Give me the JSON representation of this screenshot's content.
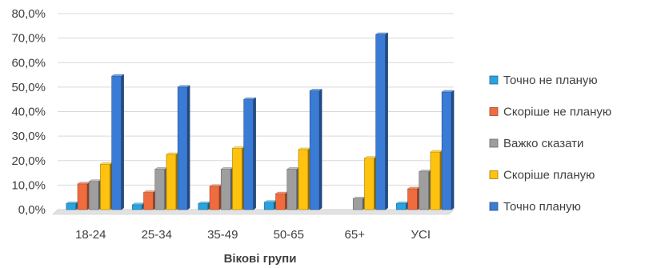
{
  "chart_data": {
    "type": "bar",
    "categories": [
      "18-24",
      "25-34",
      "35-49",
      "50-65",
      "65+",
      "УСІ"
    ],
    "series": [
      {
        "name": "Точно не планую",
        "color": "#29a3e0",
        "values": [
          2.5,
          2.0,
          2.5,
          3.0,
          0.0,
          2.5
        ]
      },
      {
        "name": "Скоріше не планую",
        "color": "#ef6c3e",
        "values": [
          10.5,
          7.0,
          9.5,
          6.5,
          0.0,
          8.5
        ]
      },
      {
        "name": "Важко сказати",
        "color": "#9e9e9e",
        "values": [
          11.5,
          16.5,
          16.5,
          16.5,
          4.5,
          15.5
        ]
      },
      {
        "name": "Скоріше планую",
        "color": "#ffc20e",
        "values": [
          18.5,
          22.5,
          25.0,
          24.5,
          21.0,
          23.5
        ]
      },
      {
        "name": "Точно планую",
        "color": "#3a7bd5",
        "values": [
          54.5,
          50.0,
          45.0,
          48.5,
          71.5,
          48.0
        ]
      }
    ],
    "yticks": [
      "0,0%",
      "10,0%",
      "20,0%",
      "30,0%",
      "40,0%",
      "50,0%",
      "60,0%",
      "70,0%",
      "80,0%"
    ],
    "ylim": [
      0,
      80
    ],
    "xlabel": "Вікові групи",
    "ylabel": "",
    "grid": true,
    "legend_position": "right"
  }
}
